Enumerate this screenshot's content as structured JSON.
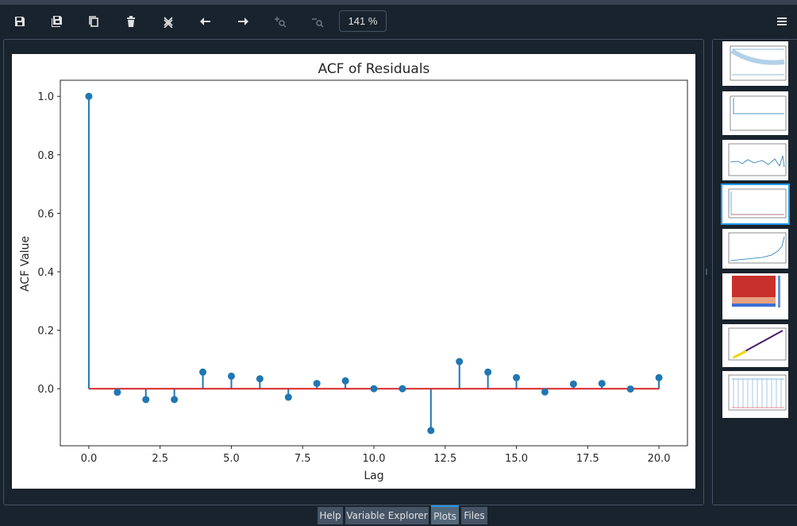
{
  "toolbar": {
    "buttons": [
      {
        "name": "save-icon"
      },
      {
        "name": "save-all-icon"
      },
      {
        "name": "copy-icon"
      },
      {
        "name": "delete-icon"
      },
      {
        "name": "delete-all-icon"
      },
      {
        "name": "previous-arrow-icon"
      },
      {
        "name": "next-arrow-icon"
      },
      {
        "name": "zoom-in-icon"
      },
      {
        "name": "zoom-out-icon"
      }
    ],
    "zoom": "141 %",
    "menu_icon": "hamburger-menu-icon"
  },
  "tabs": [
    {
      "label": "Help",
      "active": false
    },
    {
      "label": "Variable Explorer",
      "active": false
    },
    {
      "label": "Plots",
      "active": true
    },
    {
      "label": "Files",
      "active": false
    }
  ],
  "colors": {
    "accent": "#259ae9",
    "stem": "#1f77b4",
    "baseline": "#d62728",
    "background": "#19232d"
  },
  "chart_data": {
    "type": "scatter",
    "title": "ACF of Residuals",
    "xlabel": "Lag",
    "ylabel": "ACF Value",
    "x": [
      0,
      1,
      2,
      3,
      4,
      5,
      6,
      7,
      8,
      9,
      10,
      11,
      12,
      13,
      14,
      15,
      16,
      17,
      18,
      19,
      20
    ],
    "y": [
      1.0,
      -0.012,
      -0.037,
      -0.037,
      0.057,
      0.043,
      0.034,
      -0.029,
      0.018,
      0.027,
      0.0,
      0.0,
      -0.143,
      0.093,
      0.057,
      0.038,
      -0.011,
      0.016,
      0.018,
      -0.001,
      0.038
    ],
    "xticks": [
      "0.0",
      "2.5",
      "5.0",
      "7.5",
      "10.0",
      "12.5",
      "15.0",
      "17.5",
      "20.0"
    ],
    "yticks": [
      "0.0",
      "0.2",
      "0.4",
      "0.6",
      "0.8",
      "1.0"
    ],
    "xlim": [
      -1.0,
      21.0
    ],
    "ylim": [
      -0.195,
      1.055
    ],
    "style": "stem",
    "grid": false
  }
}
